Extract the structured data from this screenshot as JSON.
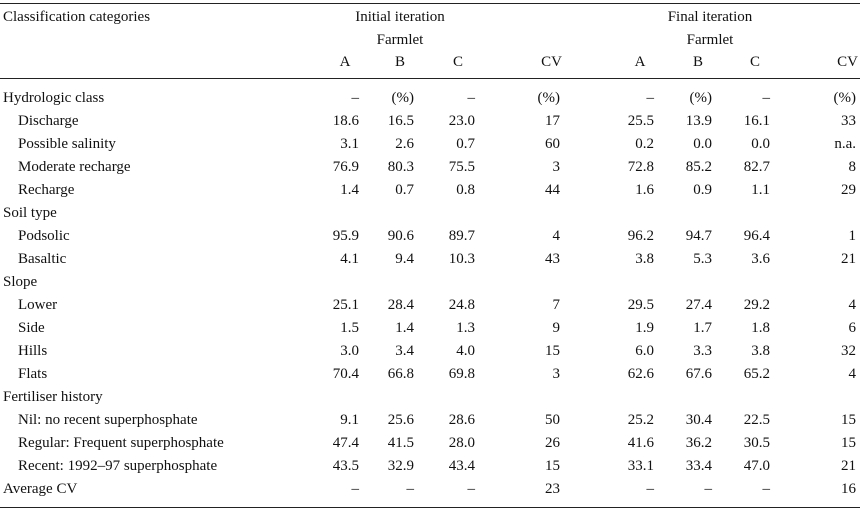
{
  "header": {
    "first_col": "Classification categories",
    "initial_iteration": "Initial iteration",
    "final_iteration": "Final iteration",
    "farmlet": "Farmlet",
    "cols": [
      "A",
      "B",
      "C",
      "CV"
    ]
  },
  "rows": [
    {
      "label": "Hydrologic class",
      "indent": false,
      "v": [
        "–",
        "(%)",
        "–",
        "(%)",
        "–",
        "(%)",
        "–",
        "(%)"
      ]
    },
    {
      "label": "Discharge",
      "indent": true,
      "v": [
        "18.6",
        "16.5",
        "23.0",
        "17",
        "25.5",
        "13.9",
        "16.1",
        "33"
      ]
    },
    {
      "label": "Possible salinity",
      "indent": true,
      "v": [
        "3.1",
        "2.6",
        "0.7",
        "60",
        "0.2",
        "0.0",
        "0.0",
        "n.a."
      ]
    },
    {
      "label": "Moderate recharge",
      "indent": true,
      "v": [
        "76.9",
        "80.3",
        "75.5",
        "3",
        "72.8",
        "85.2",
        "82.7",
        "8"
      ]
    },
    {
      "label": "Recharge",
      "indent": true,
      "v": [
        "1.4",
        "0.7",
        "0.8",
        "44",
        "1.6",
        "0.9",
        "1.1",
        "29"
      ]
    },
    {
      "label": "Soil type",
      "indent": false,
      "v": [
        "",
        "",
        "",
        "",
        "",
        "",
        "",
        ""
      ]
    },
    {
      "label": "Podsolic",
      "indent": true,
      "v": [
        "95.9",
        "90.6",
        "89.7",
        "4",
        "96.2",
        "94.7",
        "96.4",
        "1"
      ]
    },
    {
      "label": "Basaltic",
      "indent": true,
      "v": [
        "4.1",
        "9.4",
        "10.3",
        "43",
        "3.8",
        "5.3",
        "3.6",
        "21"
      ]
    },
    {
      "label": "Slope",
      "indent": false,
      "v": [
        "",
        "",
        "",
        "",
        "",
        "",
        "",
        ""
      ]
    },
    {
      "label": "Lower",
      "indent": true,
      "v": [
        "25.1",
        "28.4",
        "24.8",
        "7",
        "29.5",
        "27.4",
        "29.2",
        "4"
      ]
    },
    {
      "label": "Side",
      "indent": true,
      "v": [
        "1.5",
        "1.4",
        "1.3",
        "9",
        "1.9",
        "1.7",
        "1.8",
        "6"
      ]
    },
    {
      "label": "Hills",
      "indent": true,
      "v": [
        "3.0",
        "3.4",
        "4.0",
        "15",
        "6.0",
        "3.3",
        "3.8",
        "32"
      ]
    },
    {
      "label": "Flats",
      "indent": true,
      "v": [
        "70.4",
        "66.8",
        "69.8",
        "3",
        "62.6",
        "67.6",
        "65.2",
        "4"
      ]
    },
    {
      "label": "Fertiliser history",
      "indent": false,
      "v": [
        "",
        "",
        "",
        "",
        "",
        "",
        "",
        ""
      ]
    },
    {
      "label": "Nil: no recent superphosphate",
      "indent": true,
      "v": [
        "9.1",
        "25.6",
        "28.6",
        "50",
        "25.2",
        "30.4",
        "22.5",
        "15"
      ]
    },
    {
      "label": "Regular: Frequent superphosphate",
      "indent": true,
      "v": [
        "47.4",
        "41.5",
        "28.0",
        "26",
        "41.6",
        "36.2",
        "30.5",
        "15"
      ]
    },
    {
      "label": "Recent: 1992–97 superphosphate",
      "indent": true,
      "v": [
        "43.5",
        "32.9",
        "43.4",
        "15",
        "33.1",
        "33.4",
        "47.0",
        "21"
      ]
    },
    {
      "label": "Average CV",
      "indent": false,
      "v": [
        "–",
        "–",
        "–",
        "23",
        "–",
        "–",
        "–",
        "16"
      ]
    }
  ]
}
